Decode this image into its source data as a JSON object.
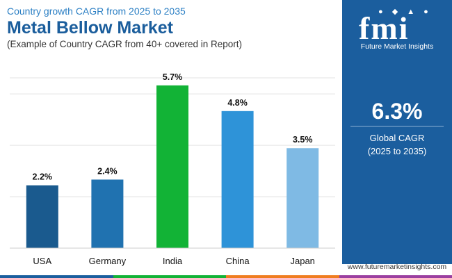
{
  "header": {
    "subtitle": "Country growth CAGR from 2025 to 2035",
    "title": "Metal Bellow Market",
    "note": "(Example of Country CAGR from 40+ covered in Report)"
  },
  "chart_data": {
    "type": "bar",
    "categories": [
      "USA",
      "Germany",
      "India",
      "China",
      "Japan"
    ],
    "values": [
      2.2,
      2.4,
      5.7,
      4.8,
      3.5
    ],
    "data_labels": [
      "2.2%",
      "2.4%",
      "5.7%",
      "4.8%",
      "3.5%"
    ],
    "colors": [
      "#1a5a8e",
      "#2072b0",
      "#12b336",
      "#2e93d8",
      "#7fbae4"
    ],
    "ylim": [
      0,
      6.5
    ],
    "grid": true,
    "legend": "none"
  },
  "side_panel": {
    "logo_letters": "fmi",
    "logo_text": "Future Market Insights",
    "cagr_value": "6.3%",
    "cagr_label_line1": "Global CAGR",
    "cagr_label_line2": "(2025 to 2035)",
    "background": "#1b5e9e"
  },
  "footer": {
    "url": "www.futuremarketinsights.com",
    "bar_colors": [
      "#1b5e9e",
      "#12b336",
      "#f07d20",
      "#9b3fa0"
    ]
  }
}
